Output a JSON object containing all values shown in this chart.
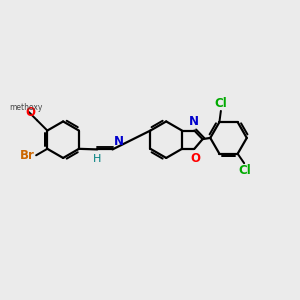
{
  "background_color": "#ebebeb",
  "bond_color": "#000000",
  "lw": 1.6,
  "figsize": [
    3.0,
    3.0
  ],
  "dpi": 100,
  "colors": {
    "Br": "#cc6600",
    "O": "#ff0000",
    "N": "#0000cc",
    "Cl": "#00aa00",
    "H": "#008080",
    "C": "#000000"
  }
}
